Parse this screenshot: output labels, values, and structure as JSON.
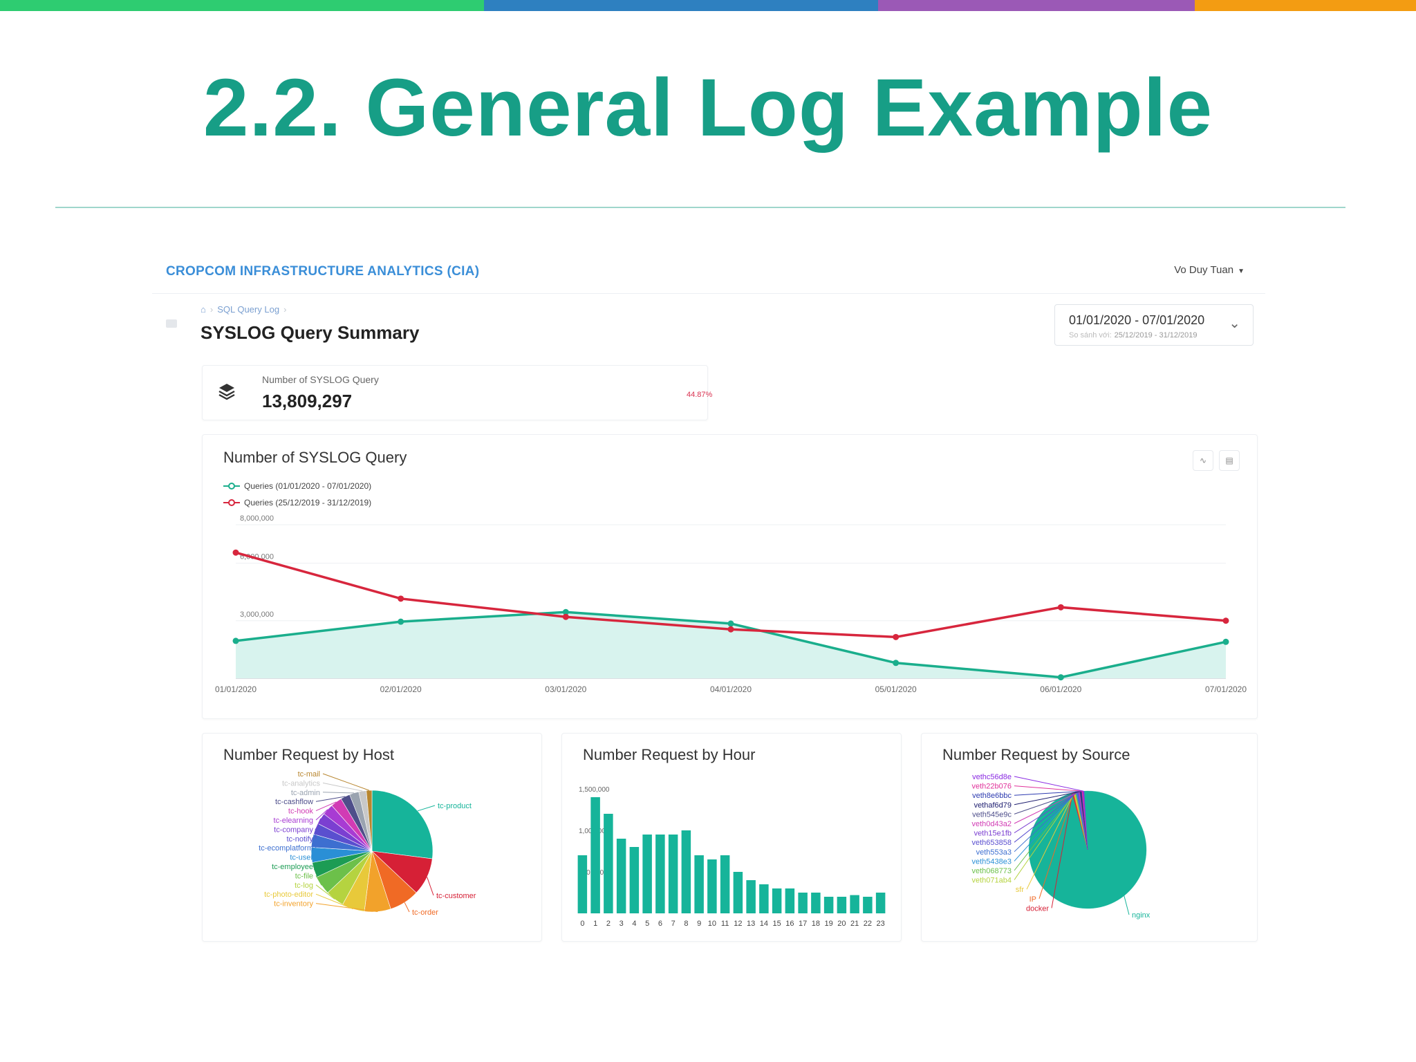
{
  "slide": {
    "title": "2.2. General Log Example",
    "title_color": "#179e86",
    "rule_color": "#9fd6cc",
    "top_bar_colors": [
      "#2ecc71",
      "#2e80c0",
      "#9b59b6",
      "#f39c12"
    ]
  },
  "app": {
    "brand": "CROPCOM INFRASTRUCTURE ANALYTICS (CIA)",
    "user": "Vo Duy Tuan",
    "breadcrumb": [
      "SQL Query Log"
    ],
    "page_title": "SYSLOG Query Summary",
    "date_range": {
      "main": "01/01/2020 - 07/01/2020",
      "compare_label": "So sánh với:",
      "compare_value": "25/12/2019 - 31/12/2019"
    }
  },
  "kpi": {
    "label": "Number of SYSLOG Query",
    "value": "13,809,297",
    "change": "44.87%",
    "icon": "layers-icon"
  },
  "line_chart": {
    "title": "Number of SYSLOG Query",
    "tools": [
      "line-chart-icon",
      "bar-chart-icon"
    ]
  },
  "host_chart": {
    "title": "Number Request by Host"
  },
  "hour_chart": {
    "title": "Number Request by Hour"
  },
  "source_chart": {
    "title": "Number Request by Source"
  },
  "chart_data": [
    {
      "type": "line",
      "x": [
        "01/01/2020",
        "02/01/2020",
        "03/01/2020",
        "04/01/2020",
        "05/01/2020",
        "06/01/2020",
        "07/01/2020"
      ],
      "ylim": [
        0,
        8000000
      ],
      "yticks": [
        "8,000,000",
        "6,000,000",
        "3,000,000"
      ],
      "series": [
        {
          "name": "Queries (01/01/2020 - 07/01/2020)",
          "color": "#1aae8c",
          "area": true,
          "values": [
            1950000,
            2950000,
            3450000,
            2850000,
            800000,
            50000,
            1900000
          ]
        },
        {
          "name": "Queries (25/12/2019 - 31/12/2019)",
          "color": "#d7263d",
          "area": false,
          "values": [
            6550000,
            4150000,
            3200000,
            2550000,
            2150000,
            3700000,
            3000000
          ]
        }
      ],
      "grid": true,
      "legend": "top-left"
    },
    {
      "type": "pie",
      "labels": [
        "tc-product",
        "tc-customer",
        "tc-order",
        "tc-inventory",
        "tc-photo-editor",
        "tc-log",
        "tc-file",
        "tc-employee",
        "tc-user",
        "tc-ecomplatform",
        "tc-notify",
        "tc-company",
        "tc-elearning",
        "tc-hook",
        "tc-cashflow",
        "tc-admin",
        "tc-analytics",
        "tc-mail"
      ],
      "values": [
        27,
        10,
        8,
        7,
        6,
        5,
        5,
        4,
        4,
        3.5,
        3,
        3,
        3,
        3,
        2.5,
        2.5,
        2,
        1.5
      ],
      "colors": [
        "#16b49a",
        "#d62036",
        "#f06a25",
        "#f2a22b",
        "#e8c93a",
        "#b5d340",
        "#6cc04a",
        "#1c9c54",
        "#2a8fd6",
        "#3d6fd0",
        "#5a4fcf",
        "#7b3fd1",
        "#a83bd3",
        "#d13bb4",
        "#4e4e8a",
        "#9aa3b0",
        "#c8c8c8",
        "#b8862f"
      ]
    },
    {
      "type": "bar",
      "categories": [
        "0",
        "1",
        "2",
        "3",
        "4",
        "5",
        "6",
        "7",
        "8",
        "9",
        "10",
        "11",
        "12",
        "13",
        "14",
        "15",
        "16",
        "17",
        "18",
        "19",
        "20",
        "21",
        "22",
        "23"
      ],
      "values": [
        700000,
        1400000,
        1200000,
        900000,
        800000,
        950000,
        950000,
        950000,
        1000000,
        700000,
        650000,
        700000,
        500000,
        400000,
        350000,
        300000,
        300000,
        250000,
        250000,
        200000,
        200000,
        220000,
        200000,
        250000
      ],
      "ylim": [
        0,
        1500000
      ],
      "yticks": [
        "1,500,000",
        "1,000,000",
        "500,000"
      ],
      "color": "#16b49a"
    },
    {
      "type": "pie",
      "labels": [
        "nginx",
        "docker",
        "IP",
        "sfr",
        "veth071ab4",
        "veth068773",
        "veth5438e3",
        "veth553a3",
        "veth653858",
        "veth15e1fb",
        "veth0d43a2",
        "veth545e9c",
        "vethaf6d79",
        "veth8e6bbc",
        "veth22b076",
        "vethc56d8e"
      ],
      "values": [
        96.5,
        0.3,
        0.2,
        0.2,
        0.2,
        0.2,
        0.2,
        0.2,
        0.2,
        0.2,
        0.2,
        0.2,
        0.2,
        0.2,
        0.3,
        0.3
      ],
      "colors": [
        "#16b49a",
        "#d62036",
        "#f06a25",
        "#e8c93a",
        "#b5d340",
        "#6cc04a",
        "#2a8fd6",
        "#3d6fd0",
        "#5a4fcf",
        "#7b3fd1",
        "#d13bb4",
        "#4e4e8a",
        "#1c1c6e",
        "#2d3bb0",
        "#e0319a",
        "#8a2be2"
      ]
    }
  ]
}
